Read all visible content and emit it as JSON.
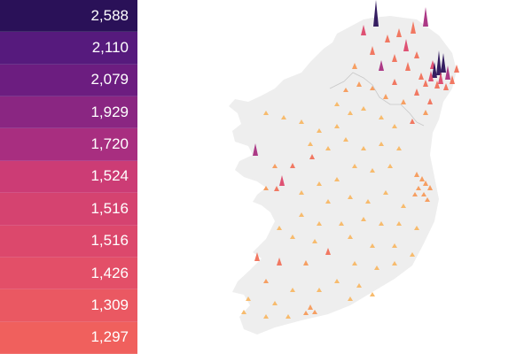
{
  "legend": {
    "rows": [
      {
        "value": "2,588",
        "color": "#2a1158"
      },
      {
        "value": "2,110",
        "color": "#561a7d"
      },
      {
        "value": "2,079",
        "color": "#6c1d80"
      },
      {
        "value": "1,929",
        "color": "#8a2682"
      },
      {
        "value": "1,720",
        "color": "#a82e80"
      },
      {
        "value": "1,524",
        "color": "#cc3c75"
      },
      {
        "value": "1,516",
        "color": "#d54370"
      },
      {
        "value": "1,516",
        "color": "#dc486c"
      },
      {
        "value": "1,426",
        "color": "#e34f68"
      },
      {
        "value": "1,309",
        "color": "#ea5862"
      },
      {
        "value": "1,297",
        "color": "#f0605d"
      }
    ]
  },
  "map": {
    "land_color": "#eeeeee",
    "border_color": "#c8c8c8",
    "spike_colors": {
      "very_high": "#2a1158",
      "high": "#a82e80",
      "mid_high": "#dc486c",
      "mid": "#f0715a",
      "low": "#f59a5a",
      "very_low": "#f7b765"
    }
  }
}
